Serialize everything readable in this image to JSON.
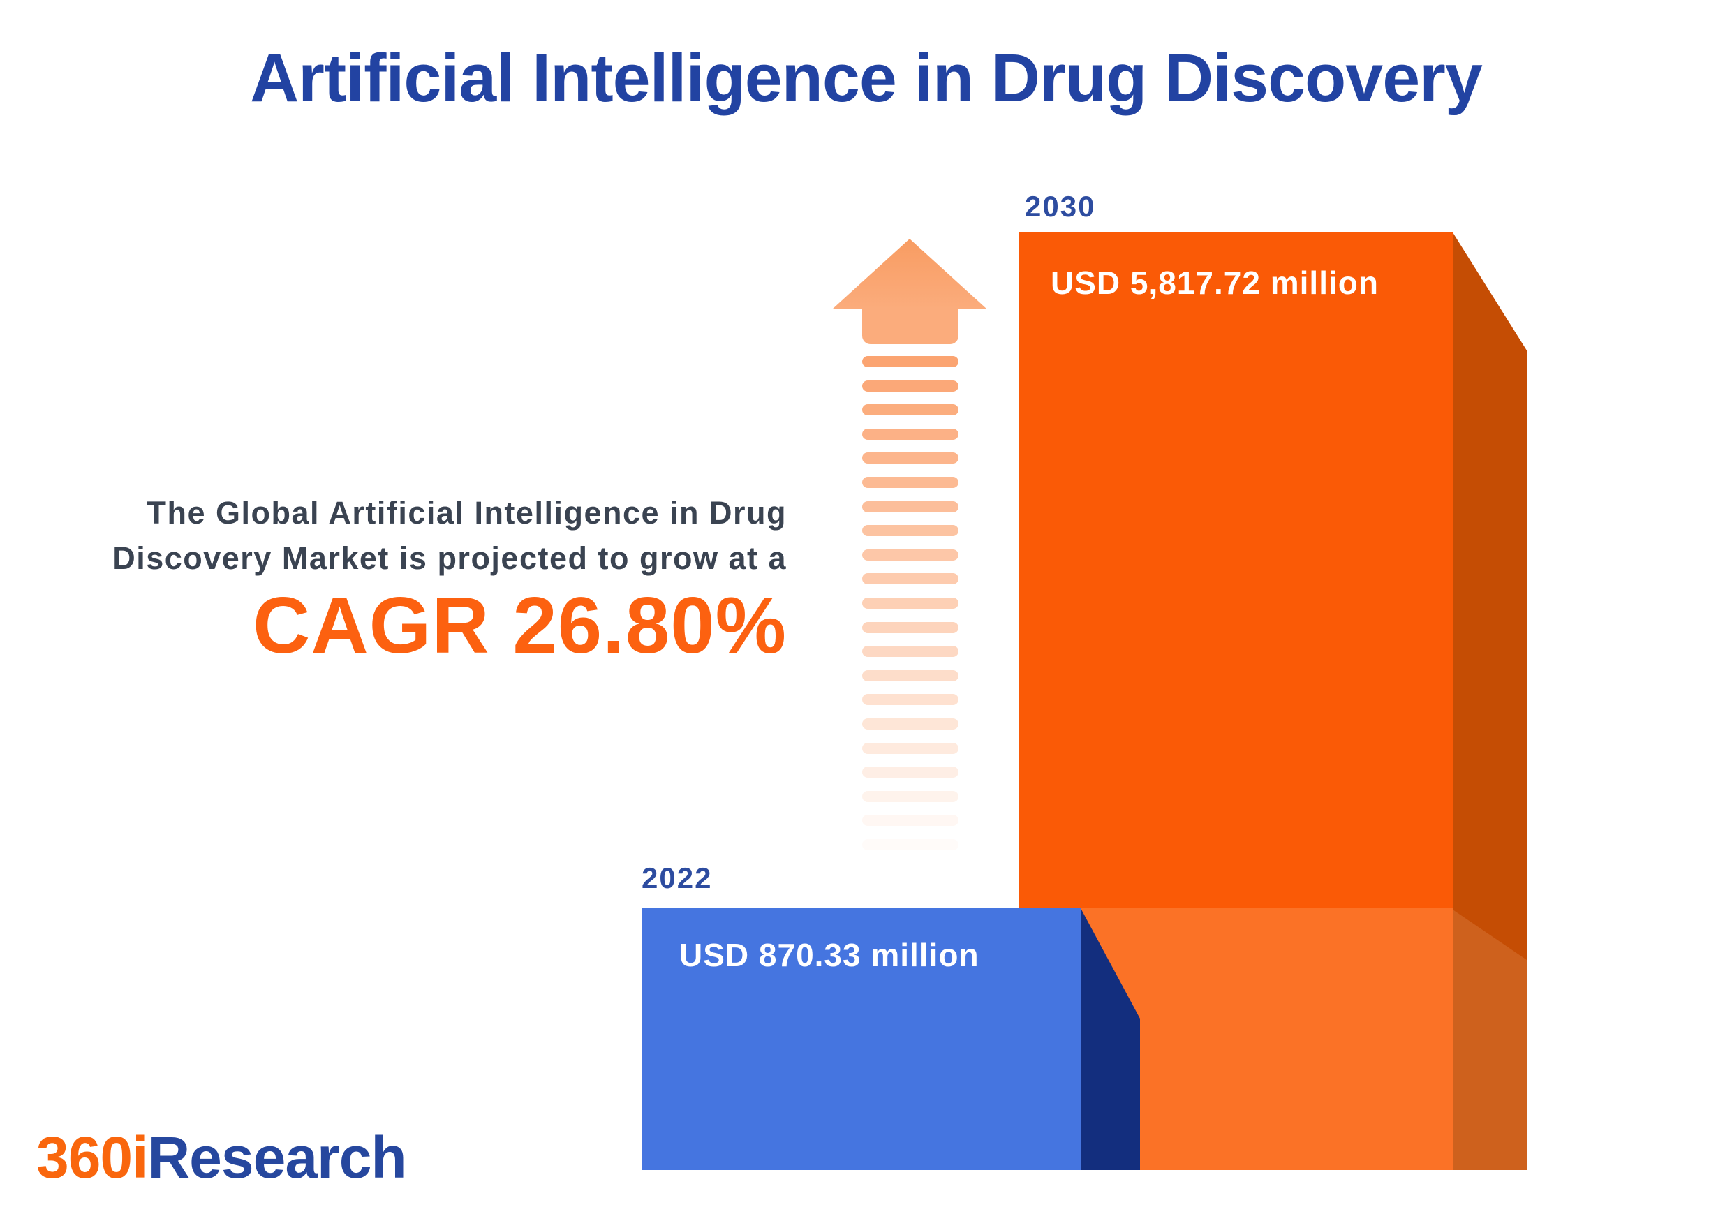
{
  "title": "Artificial Intelligence in Drug Discovery",
  "description": {
    "line1": "The Global Artificial Intelligence in Drug",
    "line2": "Discovery Market is projected to grow at a",
    "cagr": "CAGR 26.80%"
  },
  "bars": [
    {
      "year": "2022",
      "value_label": "USD 870.33 million"
    },
    {
      "year": "2030",
      "value_label": "USD 5,817.72 million"
    }
  ],
  "arrow": {
    "dash_count": 21
  },
  "logo": {
    "prefix": "360i",
    "suffix": "Research"
  },
  "colors": {
    "title_blue": "#2243a2",
    "year_blue": "#2d4ca0",
    "desc_dark": "#3a4351",
    "accent_orange": "#fc6110",
    "orange_front_top": "#fa5a06",
    "orange_front_light": "#fb7226",
    "orange_side_dark": "#c54d04",
    "orange_side_light": "#ce611d",
    "blue_front": "#4575e0",
    "blue_side": "#132e7e",
    "arrow_head_top": "#f89c62",
    "arrow_head_bottom": "#fbac7c",
    "arrow_dash": "#fba471",
    "logo_orange": "#f9660d",
    "logo_blue": "#26479e"
  },
  "chart_data": {
    "type": "bar",
    "title": "Artificial Intelligence in Drug Discovery",
    "categories": [
      "2022",
      "2030"
    ],
    "series": [
      {
        "name": "Global Artificial Intelligence in Drug Discovery Market",
        "values": [
          870.33,
          5817.72
        ]
      }
    ],
    "unit": "USD million",
    "cagr_percent": 26.8,
    "value_labels": [
      "USD 870.33 million",
      "USD 5,817.72 million"
    ],
    "annotations": [
      "The Global Artificial Intelligence in Drug Discovery Market is projected to grow at a CAGR 26.80%"
    ],
    "bar_colors": [
      "#4575e0",
      "#fa5a06"
    ],
    "legend": false,
    "grid": false,
    "orientation": "vertical",
    "style": "3d-infographic"
  }
}
